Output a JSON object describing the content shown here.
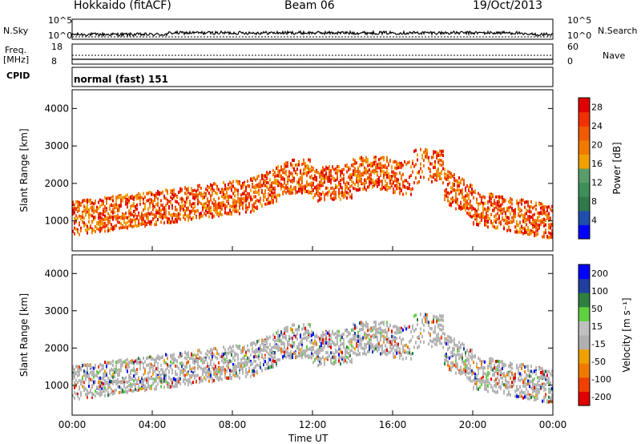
{
  "header": {
    "station": "Hokkaido (fitACF)",
    "beam": "Beam 06",
    "date": "19/Oct/2013"
  },
  "side_labels": {
    "nsky": "N.Sky",
    "nsearch": "N.Search",
    "freq": "Freq.",
    "freq_unit": "[MHz]",
    "nave": "Nave",
    "cpid": "CPID"
  },
  "cpid_text": "normal (fast) 151",
  "colors": {
    "power_scale": [
      "#0000ff",
      "#1f4fae",
      "#2e7a4a",
      "#3d8f5a",
      "#5a9d6b",
      "#f0a000",
      "#f07a00",
      "#f05a00",
      "#f03000",
      "#e00000"
    ],
    "velocity_scale": [
      "#e00000",
      "#f04000",
      "#f07a00",
      "#f0a000",
      "#b0b0b0",
      "#c0c0c0",
      "#60d040",
      "#2e8040",
      "#2040a0",
      "#0000ff"
    ],
    "ground_scatter": "#b4b4b4"
  },
  "chart_data": [
    {
      "type": "line",
      "name": "noise-panel",
      "ylabel_left": "N.Sky",
      "ylabel_right": "N.Search",
      "left_ticks": [
        "10^5",
        "10^0"
      ],
      "right_ticks": [
        "10^5",
        "10^0"
      ],
      "x_range": [
        0,
        24
      ]
    },
    {
      "type": "line",
      "name": "freq-nave-panel",
      "left_ticks": [
        "18",
        "8"
      ],
      "right_ticks": [
        "60",
        "0"
      ],
      "x_range": [
        0,
        24
      ]
    },
    {
      "type": "heatmap",
      "name": "power",
      "ylabel": "Slant Range [km]",
      "yticks": [
        "1000",
        "2000",
        "3000",
        "4000"
      ],
      "ylim": [
        200,
        4500
      ],
      "x_range": [
        0,
        24
      ],
      "colorbar_label": "Power [dB]",
      "colorbar_ticks": [
        "4",
        "8",
        "12",
        "16",
        "20",
        "24",
        "28"
      ],
      "colorbar_range": [
        0,
        30
      ]
    },
    {
      "type": "heatmap",
      "name": "velocity",
      "ylabel": "Slant Range [km]",
      "yticks": [
        "1000",
        "2000",
        "3000",
        "4000"
      ],
      "ylim": [
        200,
        4500
      ],
      "x_range": [
        0,
        24
      ],
      "colorbar_label": "Velocity [m s⁻¹]",
      "colorbar_ticks": [
        "200",
        "100",
        "50",
        "15",
        "-15",
        "-50",
        "-100",
        "-200"
      ]
    }
  ],
  "x_axis": {
    "label": "Time UT",
    "ticks": [
      "00:00",
      "04:00",
      "08:00",
      "12:00",
      "16:00",
      "20:00",
      "00:00"
    ]
  }
}
